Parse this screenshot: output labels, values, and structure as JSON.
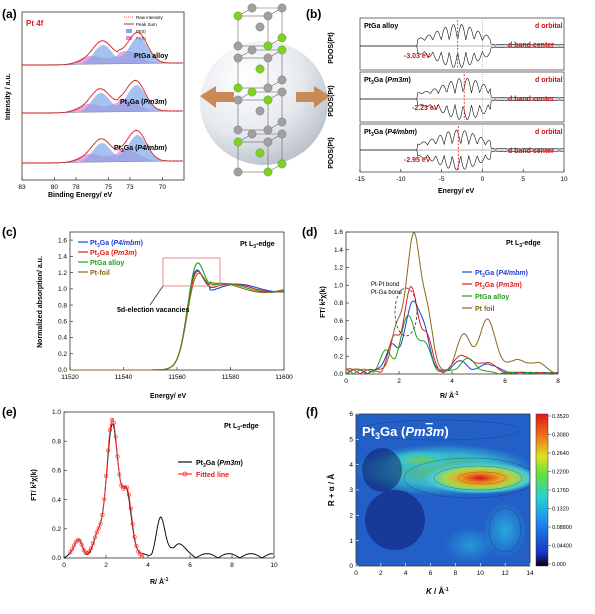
{
  "panel_labels": [
    "(a)",
    "(b)",
    "(c)",
    "(d)",
    "(e)",
    "(f)"
  ],
  "center_illustration": {
    "description_icon": "crystal-structure-icon",
    "colors": {
      "pt": "#a0a0a0",
      "ga": "#7ed321",
      "arrow": "#c98a56"
    }
  },
  "chart_data": [
    {
      "id": "a",
      "type": "line",
      "title": "",
      "tag": "Pt 4f",
      "xlabel": "Binding Energy/ eV",
      "ylabel": "Intensity / a.u.",
      "xlim": [
        83,
        68
      ],
      "xticks": [
        70,
        73,
        75,
        78,
        80,
        83
      ],
      "legend": [
        "Raw intensity",
        "Peak Sum",
        "Pt(0)",
        "Pt(II)"
      ],
      "series": [
        {
          "name": "PtGa alloy",
          "peaks": [
            72.2,
            75.5
          ],
          "offset": 2
        },
        {
          "name": "Pt3Ga (Pm3m)",
          "peaks": [
            72.4,
            75.7
          ],
          "offset": 1
        },
        {
          "name": "Pt3Ga (P4/mbm)",
          "peaks": [
            72.3,
            75.6
          ],
          "offset": 0
        }
      ],
      "colors": {
        "raw": "#ff5a5a",
        "sum": "#cc2020",
        "pt0": "#7fa6e8",
        "pt2": "#e48ad8"
      }
    },
    {
      "id": "b",
      "type": "line",
      "title": "",
      "xlabel": "Energy/ eV",
      "ylabel": "PDOS(Pt)",
      "xlim": [
        -15,
        10
      ],
      "xticks": [
        -15,
        -10,
        -5,
        0,
        5,
        10
      ],
      "series": [
        {
          "name": "PtGa alloy",
          "band_center": -3.03,
          "label": "-3.03 eV"
        },
        {
          "name": "Pt3Ga (Pm3m)",
          "band_center": -2.23,
          "label": "-2.23 eV"
        },
        {
          "name": "Pt3Ga (P4/mbm)",
          "band_center": -2.95,
          "label": "-2.95 eV"
        }
      ],
      "annotations": [
        "d orbital",
        "d band center"
      ]
    },
    {
      "id": "c",
      "type": "line",
      "title": "Pt L3-edge",
      "xlabel": "Energy/ eV",
      "ylabel": "Normalized absorption/ a.u.",
      "xlim": [
        11520,
        11600
      ],
      "ylim": [
        0.0,
        1.7
      ],
      "xticks": [
        11520,
        11540,
        11560,
        11580,
        11600
      ],
      "yticks": [
        0.0,
        0.2,
        0.4,
        0.6,
        0.8,
        1.0,
        1.2,
        1.4,
        1.6
      ],
      "annotation": "5d-election vacancies",
      "series": [
        {
          "name": "Pt3Ga (P4/mbm)",
          "color": "#1f3fd8",
          "white_line": 1.33
        },
        {
          "name": "Pt3Ga (Pm3m)",
          "color": "#e02020",
          "white_line": 1.3
        },
        {
          "name": "PtGa alloy",
          "color": "#20a020",
          "white_line": 1.4
        },
        {
          "name": "Pt-foil",
          "color": "#8a6a1a",
          "white_line": 1.25
        }
      ]
    },
    {
      "id": "d",
      "type": "line",
      "title": "Pt L3-edge",
      "xlabel": "R/ Å-1",
      "ylabel": "FT/ k2χ(k)",
      "xlim": [
        0,
        8
      ],
      "ylim": [
        0.0,
        1.6
      ],
      "xticks": [
        0,
        2,
        4,
        6,
        8
      ],
      "yticks": [
        0.0,
        0.2,
        0.4,
        0.6,
        0.8,
        1.0,
        1.2,
        1.4,
        1.6
      ],
      "annotations": [
        "Pt-Pt bond",
        "Pt-Ga bond"
      ],
      "series": [
        {
          "name": "Pt3Ga (P4/mbm)",
          "color": "#1f3fd8",
          "main_peak": 0.78
        },
        {
          "name": "Pt3Ga (Pm3m)",
          "color": "#e02020",
          "main_peak": 0.94
        },
        {
          "name": "PtGa alloy",
          "color": "#20a020",
          "main_peak": 0.62
        },
        {
          "name": "Pt foil",
          "color": "#8a6a1a",
          "main_peak": 1.55
        }
      ]
    },
    {
      "id": "e",
      "type": "line",
      "title": "Pt L3-edge",
      "xlabel": "R/ Å-1",
      "ylabel": "FT/ k2χ(k)",
      "xlim": [
        0,
        10
      ],
      "ylim": [
        0.0,
        1.0
      ],
      "xticks": [
        0,
        2,
        4,
        6,
        8,
        10
      ],
      "yticks": [
        0.0,
        0.2,
        0.4,
        0.6,
        0.8,
        1.0
      ],
      "series": [
        {
          "name": "Pt3Ga (Pm3m)",
          "color": "#111111",
          "main_peak": 0.9
        },
        {
          "name": "Fitted line",
          "color": "#ff3030",
          "main_peak": 0.92
        }
      ]
    },
    {
      "id": "f",
      "type": "heatmap",
      "title": "Pt3Ga (Pm3m)",
      "xlabel": "K / Å-1",
      "ylabel": "R + α / Å",
      "xlim": [
        0,
        14
      ],
      "ylim": [
        0,
        6
      ],
      "xticks": [
        0,
        2,
        4,
        6,
        8,
        10,
        12,
        14
      ],
      "yticks": [
        0,
        1,
        2,
        3,
        4,
        5,
        6
      ],
      "colorbar": [
        "0.3520",
        "0.3080",
        "0.2640",
        "0.2200",
        "0.1760",
        "0.1320",
        "0.08800",
        "0.04400",
        "0.000"
      ]
    }
  ],
  "labels": {
    "a_tag": "Pt 4f",
    "a_raw": "Raw intensity",
    "a_sum": "Peak Sum",
    "a_pt0": "Pt(0)",
    "a_pt2": "Pt(II)",
    "a_s1": "PtGa alloy",
    "b_s1": "PtGa alloy",
    "b_dorb": "d orbital",
    "b_dbc": "d band center",
    "b_e1": "-3.03 eV",
    "b_e2": "-2.23 eV",
    "b_e3": "-2.95 eV",
    "c_title": "Pt L",
    "c_annot": "5d-election vacancies",
    "c_l3": "PtGa alloy",
    "c_l4": "Pt-foil",
    "d_b1": "Pt-Pt bond",
    "d_b2": "Pt-Ga bond",
    "d_l3": "PtGa alloy",
    "d_l4": "Pt foil",
    "e_l2": "Fitted line"
  }
}
